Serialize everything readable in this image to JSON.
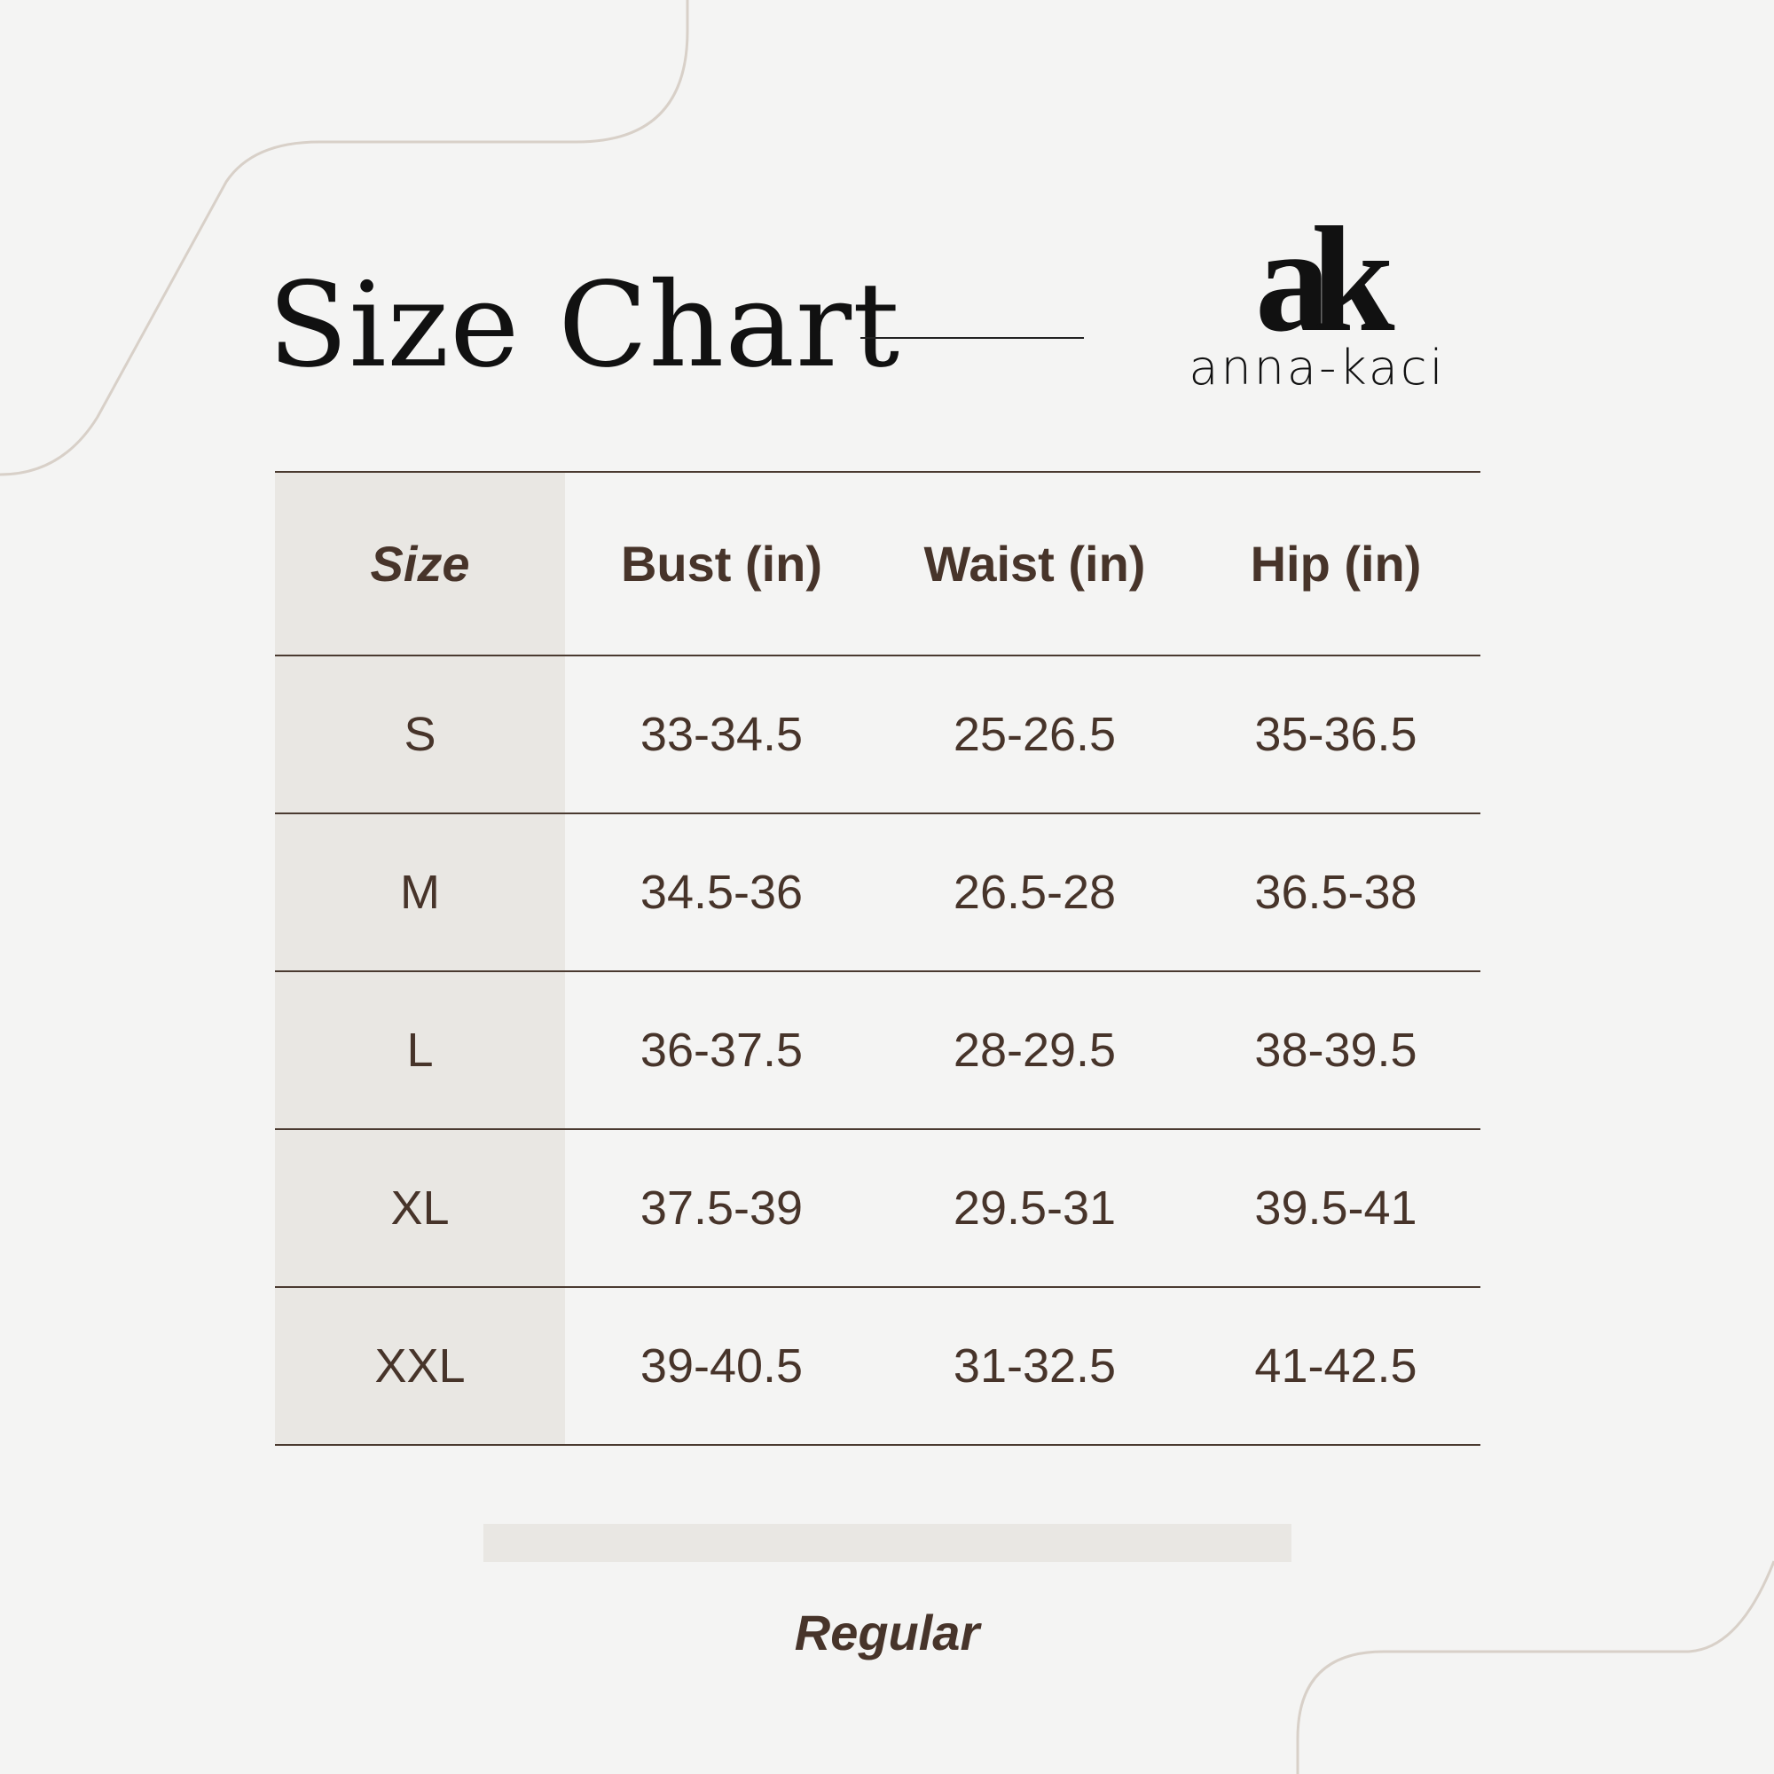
{
  "title": "Size Chart",
  "brand": {
    "monogram": "ak",
    "name": "anna-kaci"
  },
  "table": {
    "headers": [
      "Size",
      "Bust (in)",
      "Waist (in)",
      "Hip (in)"
    ],
    "rows": [
      [
        "S",
        "33-34.5",
        "25-26.5",
        "35-36.5"
      ],
      [
        "M",
        "34.5-36",
        "26.5-28",
        "36.5-38"
      ],
      [
        "L",
        "36-37.5",
        "28-29.5",
        "38-39.5"
      ],
      [
        "XL",
        "37.5-39",
        "29.5-31",
        "39.5-41"
      ],
      [
        "XXL",
        "39-40.5",
        "31-32.5",
        "41-42.5"
      ]
    ]
  },
  "fit_label": "Regular",
  "colors": {
    "background": "#f4f4f3",
    "text": "#47342a",
    "shade": "#e9e7e3",
    "decor_line": "#d8d0c8"
  }
}
